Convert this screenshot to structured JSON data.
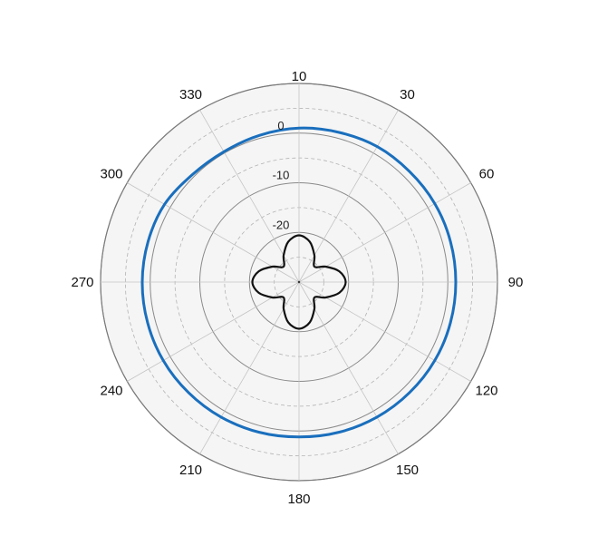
{
  "chart_data": {
    "type": "polar-line",
    "title": "",
    "angle_unit": "degrees",
    "angle_zero": "top",
    "angle_direction": "clockwise",
    "angle_ticks": [
      30,
      60,
      90,
      120,
      150,
      180,
      210,
      240,
      270,
      300,
      330
    ],
    "angle_tick_labels": [
      "30",
      "60",
      "90",
      "120",
      "150",
      "180",
      "210",
      "240",
      "270",
      "300",
      "330"
    ],
    "top_label": "10",
    "radial_ticks": [
      -20,
      -10,
      0
    ],
    "radial_tick_labels": [
      "-20",
      "-10",
      "0"
    ],
    "rlim": [
      -30,
      10
    ],
    "grid": true,
    "background": "#f5f5f5",
    "series": [
      {
        "color": "#1a6fbd",
        "theta": [
          0,
          15,
          30,
          45,
          60,
          75,
          90,
          105,
          120,
          135,
          150,
          165,
          180,
          195,
          210,
          225,
          240,
          255,
          270,
          285,
          300,
          315,
          330,
          345
        ],
        "r": [
          1.0,
          1.2,
          1.5,
          1.5,
          1.6,
          1.6,
          1.6,
          1.6,
          1.6,
          1.5,
          1.4,
          1.3,
          1.2,
          1.3,
          1.4,
          1.5,
          1.6,
          1.6,
          1.6,
          1.5,
          1.3,
          0.5,
          0.3,
          0.6
        ]
      },
      {
        "color": "#111111",
        "theta": [
          0,
          15,
          30,
          45,
          60,
          75,
          90,
          105,
          120,
          135,
          150,
          165,
          180,
          195,
          210,
          225,
          240,
          255,
          270,
          285,
          300,
          315,
          330,
          345
        ],
        "r": [
          -20.6,
          -21.6,
          -23.8,
          -25.6,
          -23.8,
          -21.6,
          -20.6,
          -21.6,
          -23.8,
          -25.6,
          -23.8,
          -21.6,
          -20.6,
          -21.6,
          -23.8,
          -25.6,
          -23.8,
          -21.6,
          -20.6,
          -21.6,
          -23.8,
          -25.6,
          -23.8,
          -21.6
        ]
      }
    ]
  }
}
